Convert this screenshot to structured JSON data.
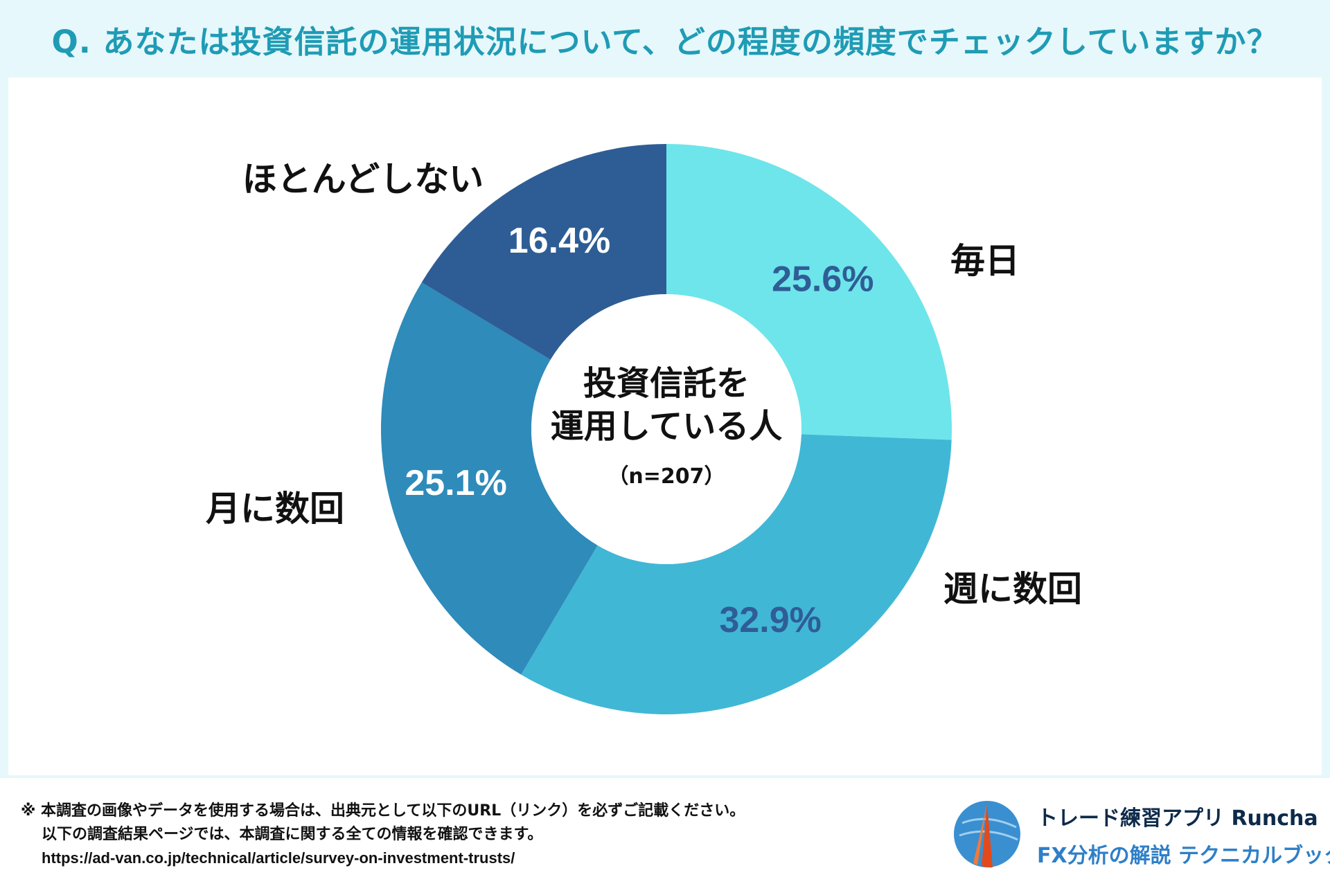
{
  "header": {
    "title": "Q. あなたは投資信託の運用状況について、どの程度の頻度でチェックしていますか？"
  },
  "center": {
    "line1": "投資信託を",
    "line2": "運用している人",
    "sample": "（n=207）"
  },
  "chart_data": {
    "type": "pie",
    "title": "Q. あなたは投資信託の運用状況について、どの程度の頻度でチェックしていますか？",
    "donut": true,
    "categories": [
      "毎日",
      "週に数回",
      "月に数回",
      "ほとんどしない"
    ],
    "values": [
      25.6,
      32.9,
      25.1,
      16.4
    ],
    "value_labels": [
      "25.6%",
      "32.9%",
      "25.1%",
      "16.4%"
    ],
    "colors": [
      "#6ee5ea",
      "#41b7d6",
      "#2e8bba",
      "#2e5d95"
    ],
    "label_colors": [
      "#2f5d96",
      "#2f5d96",
      "#ffffff",
      "#ffffff"
    ],
    "n": 207
  },
  "footer": {
    "note1": "※ 本調査の画像やデータを使用する場合は、出典元として以下のURL（リンク）を必ずご記載ください。",
    "note2": "以下の調査結果ページでは、本調査に関する全ての情報を確認できます。",
    "url": "https://ad-van.co.jp/technical/article/survey-on-investment-trusts/"
  },
  "brand": {
    "name": "トレード練習アプリ Runcha",
    "tagline": "FX分析の解説 テクニカルブック"
  }
}
